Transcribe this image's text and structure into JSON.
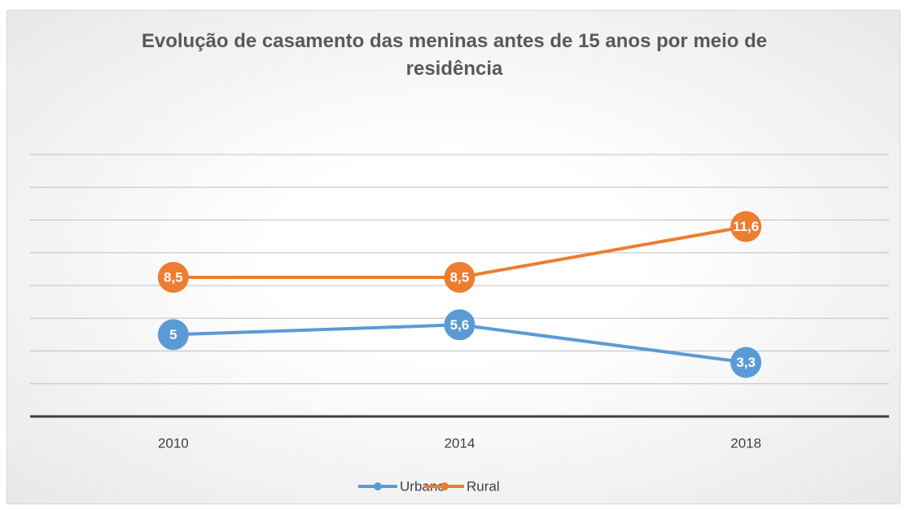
{
  "chart_data": {
    "type": "line",
    "title": "Evolução de casamento das meninas antes de 15 anos por meio de residência",
    "categories": [
      "2010",
      "2014",
      "2018"
    ],
    "series": [
      {
        "name": "Urbano",
        "color": "#5b9bd5",
        "values": [
          5,
          5.6,
          3.3
        ],
        "value_labels": [
          "5",
          "5,6",
          "3,3"
        ]
      },
      {
        "name": "Rural",
        "color": "#ed7d31",
        "values": [
          8.5,
          8.5,
          11.6
        ],
        "value_labels": [
          "8,5",
          "8,5",
          "11,6"
        ]
      }
    ],
    "ylim": [
      0,
      16
    ],
    "yticks": [
      0,
      2,
      4,
      6,
      8,
      10,
      12,
      14,
      16
    ],
    "grid": true,
    "legend": "bottom"
  }
}
